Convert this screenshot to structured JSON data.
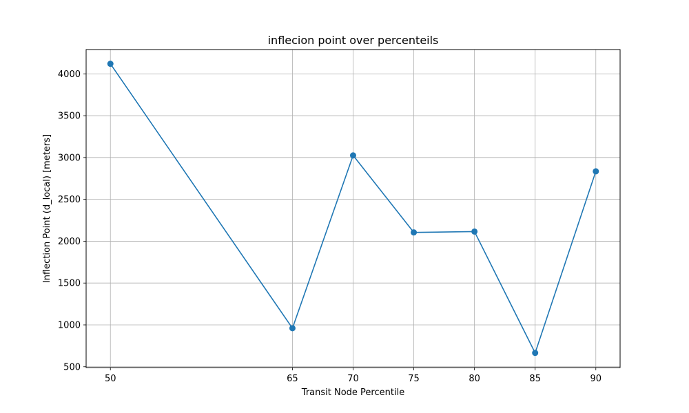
{
  "chart_data": {
    "type": "line",
    "title": "inflecion point over percenteils",
    "xlabel": "Transit Node Percentile",
    "ylabel": "Inflection Point (d_local) [meters]",
    "x": [
      50,
      65,
      70,
      75,
      80,
      85,
      90
    ],
    "series": [
      {
        "values": [
          4120,
          960,
          3025,
          2105,
          2115,
          665,
          2835
        ]
      }
    ],
    "xticks": [
      50,
      65,
      70,
      75,
      80,
      85,
      90
    ],
    "yticks": [
      500,
      1000,
      1500,
      2000,
      2500,
      3000,
      3500,
      4000
    ],
    "xlim": [
      48,
      92
    ],
    "ylim": [
      490,
      4290
    ],
    "grid": true,
    "marker": "circle",
    "line_color": "#1f77b4",
    "grid_color": "#b0b0b0"
  }
}
